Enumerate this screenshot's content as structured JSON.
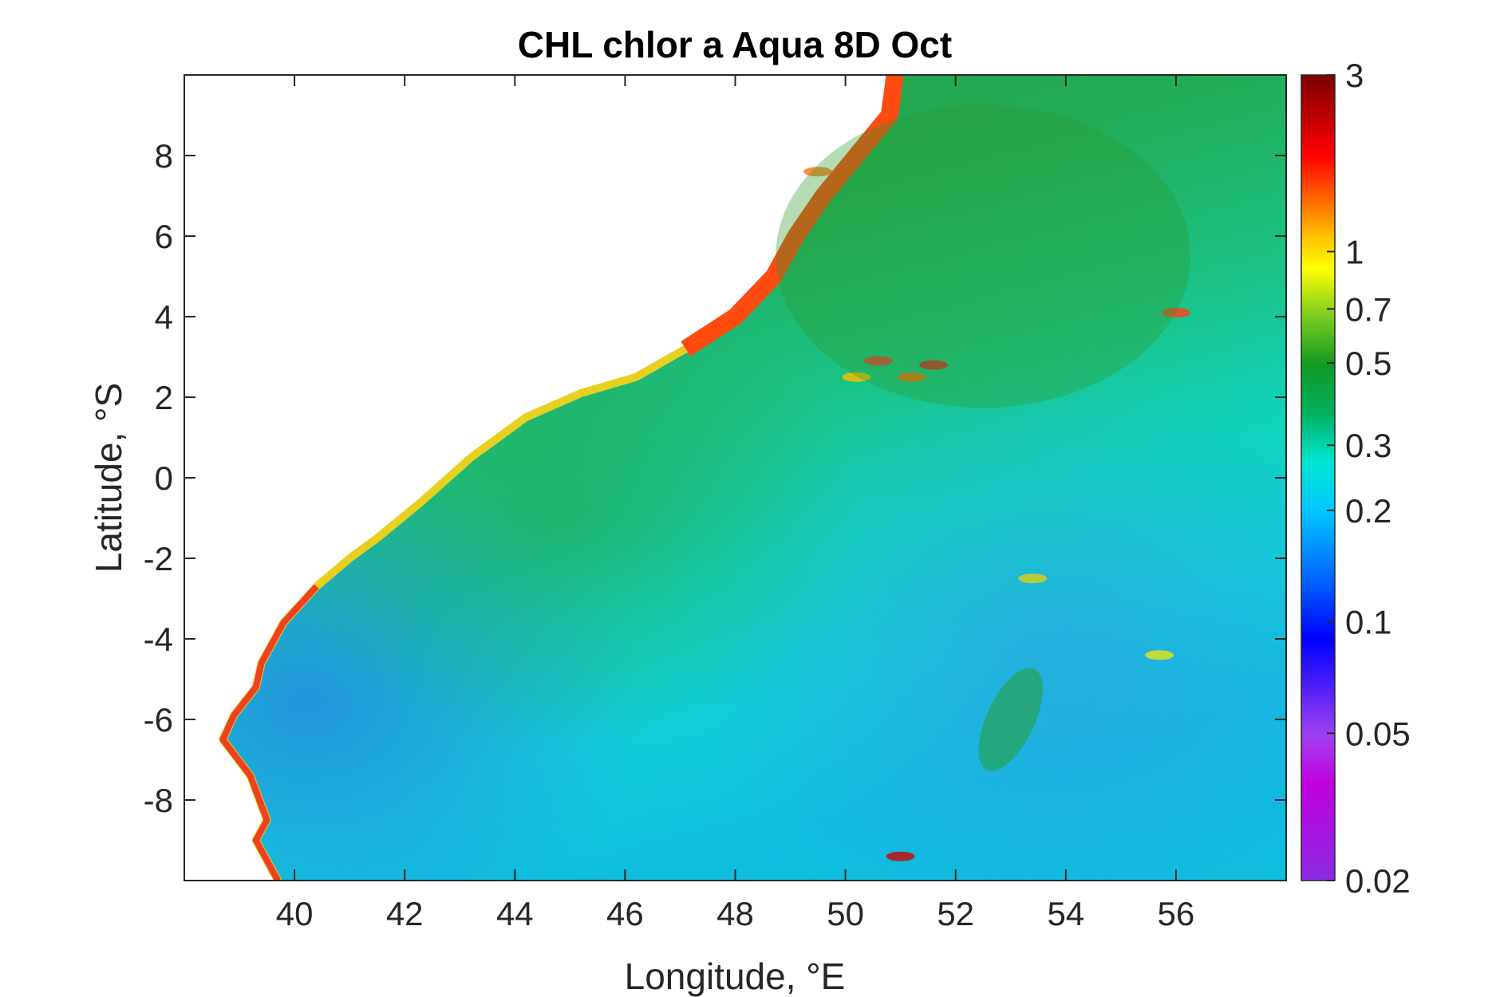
{
  "chart_data": {
    "type": "heatmap",
    "title": "CHL chlor a Aqua 8D Oct",
    "xlabel": "Longitude, °E",
    "ylabel": "Latitude, °S",
    "xlim": [
      38,
      58
    ],
    "ylim": [
      -10,
      10
    ],
    "xticks": [
      40,
      42,
      44,
      46,
      48,
      50,
      52,
      54,
      56
    ],
    "yticks": [
      -8,
      -6,
      -4,
      -2,
      0,
      2,
      4,
      6,
      8
    ],
    "colorbar": {
      "scale": "log",
      "range": [
        0.02,
        3
      ],
      "ticks": [
        0.02,
        0.05,
        0.1,
        0.2,
        0.3,
        0.5,
        0.7,
        1,
        3
      ],
      "tick_labels": [
        "0.02",
        "0.05",
        "0.1",
        "0.2",
        "0.3",
        "0.5",
        "0.7",
        "1",
        "3"
      ]
    },
    "coastline": [
      [
        38.0,
        -10.0
      ],
      [
        39.7,
        -10.0
      ],
      [
        39.3,
        -9.0
      ],
      [
        39.5,
        -8.5
      ],
      [
        39.2,
        -7.4
      ],
      [
        38.7,
        -6.5
      ],
      [
        38.9,
        -5.9
      ],
      [
        39.3,
        -5.2
      ],
      [
        39.4,
        -4.6
      ],
      [
        39.8,
        -3.6
      ],
      [
        40.4,
        -2.7
      ],
      [
        41.0,
        -2.0
      ],
      [
        41.5,
        -1.5
      ],
      [
        42.3,
        -0.6
      ],
      [
        43.2,
        0.5
      ],
      [
        44.2,
        1.5
      ],
      [
        45.2,
        2.1
      ],
      [
        46.2,
        2.5
      ],
      [
        47.1,
        3.2
      ],
      [
        48.0,
        4.0
      ],
      [
        48.7,
        5.0
      ],
      [
        49.1,
        6.0
      ],
      [
        49.6,
        7.0
      ],
      [
        50.2,
        8.0
      ],
      [
        50.8,
        9.0
      ],
      [
        50.9,
        10.0
      ],
      [
        38.0,
        10.0
      ]
    ]
  }
}
